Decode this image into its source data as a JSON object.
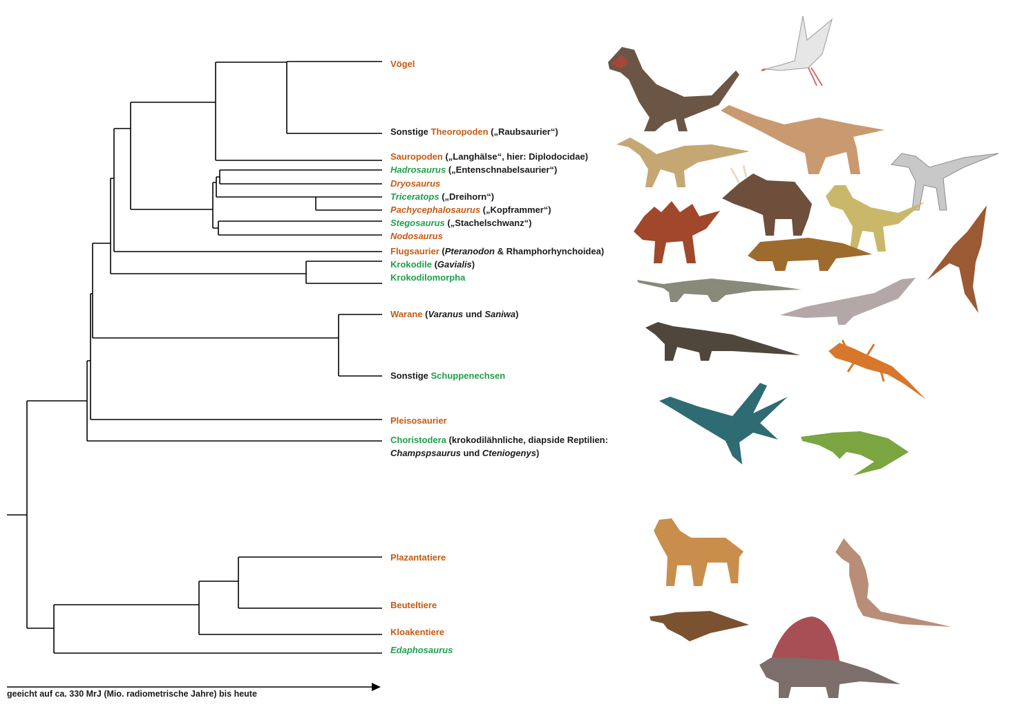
{
  "colors": {
    "orange": "#c55a11",
    "green": "#1ea04b",
    "text": "#1a1a1a"
  },
  "labels": {
    "voegel": {
      "name": "Vögel"
    },
    "theropoden": {
      "pre": "Sonstige ",
      "name": "Theoropoden",
      "post": " („Raubsaurier“)"
    },
    "sauropoden": {
      "name": "Sauropoden",
      "post": " („Langhälse“, hier: Diplodocidae)"
    },
    "hadrosaurus": {
      "name": "Hadrosaurus",
      "post": " („Entenschnabelsaurier“)"
    },
    "dryosaurus": {
      "name": "Dryosaurus"
    },
    "triceratops": {
      "name": "Triceratops",
      "post": " („Dreihorn“)"
    },
    "pachycephalosaurus": {
      "name": "Pachycephalosaurus",
      "post": " („Kopframmer“)"
    },
    "stegosaurus": {
      "name": "Stegosaurus",
      "post": " („Stachelschwanz“)"
    },
    "nodosaurus": {
      "name": "Nodosaurus"
    },
    "flugsaurier": {
      "name": "Flugsaurier",
      "p1": " (",
      "i1": "Pteranodon",
      "p2": " & Rhamphorhynchoidea)"
    },
    "krokodile": {
      "name": "Krokodile",
      "p1": " (",
      "i1": "Gavialis",
      "p2": ")"
    },
    "krokodilomorpha": {
      "name": "Krokodilomorpha"
    },
    "warane": {
      "name": "Warane",
      "p1": " (",
      "i1": "Varanus",
      "p2": " und ",
      "i2": "Saniwa",
      "p3": ")"
    },
    "schuppenechsen": {
      "pre": "Sonstige ",
      "name": "Schuppenechsen"
    },
    "pleisosaurier": {
      "name": "Pleisosaurier"
    },
    "choristodera": {
      "name": "Choristodera",
      "post": " (krokodilähnliche, diapside Reptilien:",
      "i1": "Champspsaurus",
      "p2": " und ",
      "i2": "Cteniogenys",
      "p3": ")"
    },
    "plazantatiere": {
      "name": "Plazantatiere"
    },
    "beuteltiere": {
      "name": "Beuteltiere"
    },
    "kloakentiere": {
      "name": "Kloakentiere"
    },
    "edaphosaurus": {
      "name": "Edaphosaurus"
    }
  },
  "caption": "geeicht auf ca. 330 MrJ (Mio. radiometrische Jahre) bis heute",
  "illustrations": [
    "tyrannosaurus",
    "bird",
    "sauropod",
    "hadrosaurus",
    "dryosaurus",
    "triceratops",
    "pachycephalosaurus",
    "stegosaurus",
    "nodosaurus",
    "pteranodon",
    "gavial",
    "crocodylomorph",
    "monitor-lizard",
    "gecko",
    "plesiosaur",
    "choristodere",
    "saber-tooth-cat",
    "kangaroo",
    "platypus",
    "edaphosaurus"
  ]
}
